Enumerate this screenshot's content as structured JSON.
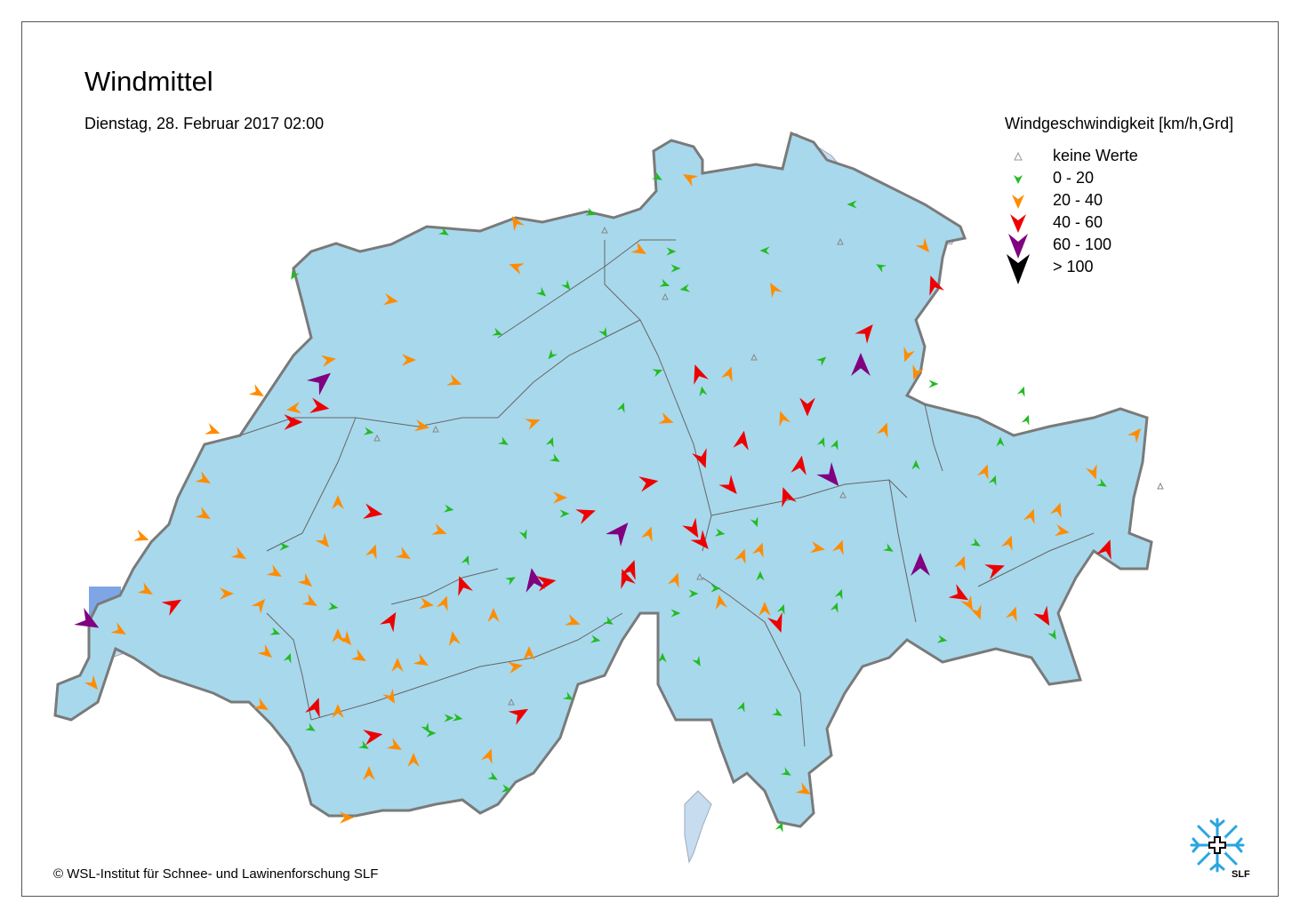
{
  "title": "Windmittel",
  "subtitle": "Dienstag, 28. Februar 2017 02:00",
  "legend": {
    "title": "Windgeschwindigkeit [km/h,Grd]",
    "items": [
      {
        "label": "keine Werte",
        "color": "#999999",
        "icon": "no-data-triangle"
      },
      {
        "label": "0 - 20",
        "color": "#22bb22",
        "icon": "wind-arrow"
      },
      {
        "label": "20 - 40",
        "color": "#ff8c00",
        "icon": "wind-arrow"
      },
      {
        "label": "40 - 60",
        "color": "#ee0000",
        "icon": "wind-arrow"
      },
      {
        "label": "60 - 100",
        "color": "#800080",
        "icon": "wind-arrow"
      },
      {
        "label": "> 100",
        "color": "#000000",
        "icon": "wind-arrow"
      }
    ]
  },
  "copyright": "© WSL-Institut für Schnee- und Lawinenforschung SLF",
  "logo": {
    "text": "SLF",
    "icon": "slf-snowflake-cross-icon"
  },
  "colors": {
    "country_fill": "#a8d8ec",
    "calm_zone": "#ccf6f6",
    "strong_zone": "#7ea6e6",
    "lakes": "#c8dcf0",
    "border": "#7a7a7a"
  }
}
